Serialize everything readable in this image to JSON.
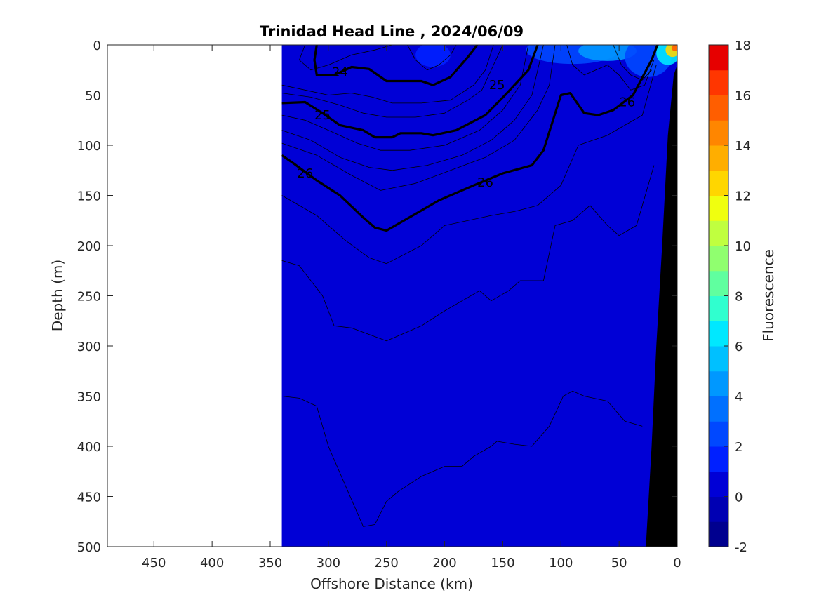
{
  "chart_data": {
    "type": "heatmap",
    "title": "Trinidad Head Line , 2024/06/09",
    "xlabel": "Offshore Distance (km)",
    "ylabel": "Depth (m)",
    "colorbar_label": "Fluorescence",
    "x_ticks": [
      450,
      400,
      350,
      300,
      250,
      200,
      150,
      100,
      50,
      0
    ],
    "y_ticks": [
      0,
      50,
      100,
      150,
      200,
      250,
      300,
      350,
      400,
      450,
      500
    ],
    "xlim": [
      490,
      0
    ],
    "ylim": [
      0,
      500
    ],
    "x_reversed": true,
    "y_reversed": true,
    "data_xmax": 340,
    "colorbar": {
      "ticks": [
        -2,
        0,
        2,
        4,
        6,
        8,
        10,
        12,
        14,
        16,
        18
      ],
      "levels": [
        -2,
        -1,
        0,
        1,
        2,
        3,
        4,
        5,
        6,
        7,
        8,
        9,
        10,
        11,
        12,
        13,
        14,
        15,
        16,
        17,
        18
      ],
      "colors": [
        "#00008f",
        "#0000b3",
        "#0000d6",
        "#0020ff",
        "#0048ff",
        "#0070ff",
        "#0098ff",
        "#00c0ff",
        "#00e8ff",
        "#30ffcf",
        "#60ff9f",
        "#90ff6f",
        "#c0ff3f",
        "#f0ff0f",
        "#ffd600",
        "#ffae00",
        "#ff8600",
        "#ff5e00",
        "#ff3600",
        "#e60000",
        "#b00000"
      ]
    },
    "background_level": 0.5,
    "surface_patches": [
      {
        "x": 90,
        "y": 5,
        "rx": 40,
        "ry": 14,
        "value": 2.5
      },
      {
        "x": 60,
        "y": 6,
        "rx": 25,
        "ry": 10,
        "value": 4.5
      },
      {
        "x": 25,
        "y": 12,
        "rx": 20,
        "ry": 20,
        "value": 2.5
      },
      {
        "x": 8,
        "y": 8,
        "rx": 10,
        "ry": 12,
        "value": 6
      },
      {
        "x": 4,
        "y": 5,
        "rx": 6,
        "ry": 7,
        "value": 12
      },
      {
        "x": 2,
        "y": 3,
        "rx": 3,
        "ry": 3,
        "value": 15
      },
      {
        "x": 210,
        "y": 10,
        "rx": 15,
        "ry": 12,
        "value": 1.5
      }
    ],
    "bathymetry": [
      [
        0,
        20
      ],
      [
        3,
        30
      ],
      [
        8,
        90
      ],
      [
        13,
        200
      ],
      [
        18,
        300
      ],
      [
        22,
        400
      ],
      [
        25,
        460
      ],
      [
        27,
        500
      ]
    ],
    "density_contours": [
      {
        "level": 24,
        "label": "24",
        "bold": true,
        "label_at": [
          290,
          27
        ],
        "points": [
          [
            310,
            0
          ],
          [
            312,
            15
          ],
          [
            310,
            30
          ],
          [
            295,
            30
          ],
          [
            280,
            22
          ],
          [
            265,
            24
          ],
          [
            250,
            36
          ],
          [
            220,
            36
          ],
          [
            210,
            40
          ],
          [
            195,
            32
          ],
          [
            180,
            12
          ],
          [
            172,
            0
          ]
        ]
      },
      {
        "level": 25,
        "label": "25",
        "bold": true,
        "label_at": [
          305,
          70
        ],
        "points": [
          [
            340,
            58
          ],
          [
            320,
            57
          ],
          [
            305,
            68
          ],
          [
            290,
            80
          ],
          [
            270,
            85
          ],
          [
            260,
            92
          ],
          [
            245,
            92
          ],
          [
            238,
            88
          ],
          [
            220,
            88
          ],
          [
            210,
            90
          ],
          [
            190,
            85
          ],
          [
            165,
            70
          ],
          [
            148,
            50
          ],
          [
            128,
            25
          ],
          [
            120,
            0
          ]
        ]
      },
      {
        "level": 25,
        "label": "25",
        "bold": true,
        "label_at": [
          155,
          40
        ],
        "points": []
      },
      {
        "level": 26,
        "label": "26",
        "bold": true,
        "label_at": [
          320,
          128
        ],
        "points": [
          [
            340,
            110
          ],
          [
            330,
            118
          ],
          [
            310,
            135
          ],
          [
            290,
            150
          ],
          [
            270,
            172
          ],
          [
            260,
            182
          ],
          [
            250,
            185
          ],
          [
            235,
            175
          ],
          [
            205,
            155
          ],
          [
            175,
            140
          ],
          [
            150,
            128
          ],
          [
            125,
            120
          ],
          [
            115,
            105
          ],
          [
            100,
            50
          ],
          [
            92,
            48
          ],
          [
            80,
            68
          ],
          [
            68,
            70
          ],
          [
            55,
            65
          ],
          [
            38,
            50
          ],
          [
            22,
            15
          ],
          [
            17,
            0
          ]
        ]
      },
      {
        "level": 26,
        "label": "26",
        "bold": true,
        "label_at": [
          165,
          137
        ],
        "points": []
      },
      {
        "level": 26,
        "label": "26",
        "bold": true,
        "label_at": [
          43,
          57
        ],
        "points": []
      },
      {
        "level": 26.2,
        "label": "",
        "bold": false,
        "label_at": [],
        "points": [
          [
            340,
            150
          ],
          [
            310,
            170
          ],
          [
            285,
            195
          ],
          [
            265,
            212
          ],
          [
            250,
            218
          ],
          [
            220,
            200
          ],
          [
            200,
            180
          ],
          [
            160,
            170
          ],
          [
            140,
            166
          ],
          [
            120,
            160
          ],
          [
            100,
            140
          ],
          [
            85,
            100
          ],
          [
            60,
            90
          ],
          [
            45,
            80
          ],
          [
            30,
            70
          ],
          [
            18,
            20
          ]
        ]
      },
      {
        "level": 26.4,
        "label": "",
        "bold": false,
        "label_at": [],
        "points": [
          [
            340,
            215
          ],
          [
            325,
            220
          ],
          [
            305,
            250
          ],
          [
            295,
            280
          ],
          [
            280,
            282
          ],
          [
            250,
            295
          ],
          [
            220,
            280
          ],
          [
            200,
            265
          ],
          [
            170,
            245
          ],
          [
            160,
            255
          ],
          [
            145,
            245
          ],
          [
            135,
            235
          ],
          [
            115,
            235
          ],
          [
            105,
            180
          ],
          [
            90,
            175
          ],
          [
            85,
            170
          ],
          [
            75,
            160
          ],
          [
            60,
            180
          ],
          [
            50,
            190
          ],
          [
            35,
            180
          ],
          [
            20,
            120
          ]
        ]
      },
      {
        "level": 26.6,
        "label": "",
        "bold": false,
        "label_at": [],
        "points": [
          [
            340,
            350
          ],
          [
            325,
            352
          ],
          [
            310,
            360
          ],
          [
            300,
            400
          ],
          [
            285,
            440
          ],
          [
            270,
            480
          ],
          [
            260,
            478
          ],
          [
            250,
            455
          ],
          [
            240,
            445
          ],
          [
            220,
            430
          ],
          [
            200,
            420
          ],
          [
            185,
            420
          ],
          [
            175,
            410
          ],
          [
            160,
            400
          ],
          [
            155,
            395
          ],
          [
            140,
            398
          ],
          [
            125,
            400
          ],
          [
            110,
            380
          ],
          [
            98,
            350
          ],
          [
            90,
            345
          ],
          [
            80,
            350
          ],
          [
            60,
            355
          ],
          [
            45,
            375
          ],
          [
            30,
            380
          ]
        ]
      },
      {
        "level": 25.2,
        "label": "",
        "bold": false,
        "label_at": [],
        "points": [
          [
            340,
            70
          ],
          [
            320,
            75
          ],
          [
            300,
            85
          ],
          [
            275,
            98
          ],
          [
            255,
            105
          ],
          [
            230,
            105
          ],
          [
            200,
            100
          ],
          [
            170,
            85
          ],
          [
            150,
            65
          ],
          [
            135,
            40
          ],
          [
            128,
            0
          ]
        ]
      },
      {
        "level": 25.5,
        "label": "",
        "bold": false,
        "label_at": [],
        "points": [
          [
            340,
            85
          ],
          [
            315,
            95
          ],
          [
            290,
            112
          ],
          [
            265,
            122
          ],
          [
            245,
            125
          ],
          [
            215,
            120
          ],
          [
            185,
            110
          ],
          [
            160,
            95
          ],
          [
            140,
            75
          ],
          [
            125,
            50
          ],
          [
            115,
            0
          ]
        ]
      },
      {
        "level": 25.8,
        "label": "",
        "bold": false,
        "label_at": [],
        "points": [
          [
            340,
            98
          ],
          [
            310,
            110
          ],
          [
            280,
            130
          ],
          [
            255,
            145
          ],
          [
            225,
            138
          ],
          [
            195,
            125
          ],
          [
            165,
            112
          ],
          [
            140,
            95
          ],
          [
            120,
            65
          ],
          [
            110,
            40
          ],
          [
            105,
            0
          ]
        ]
      },
      {
        "level": 24.5,
        "label": "",
        "bold": false,
        "label_at": [],
        "points": [
          [
            340,
            40
          ],
          [
            320,
            45
          ],
          [
            300,
            50
          ],
          [
            280,
            48
          ],
          [
            262,
            52
          ],
          [
            245,
            58
          ],
          [
            220,
            58
          ],
          [
            195,
            55
          ],
          [
            175,
            40
          ],
          [
            165,
            25
          ],
          [
            158,
            0
          ]
        ]
      },
      {
        "level": 24.8,
        "label": "",
        "bold": false,
        "label_at": [],
        "points": [
          [
            340,
            48
          ],
          [
            315,
            52
          ],
          [
            290,
            60
          ],
          [
            270,
            68
          ],
          [
            250,
            72
          ],
          [
            225,
            72
          ],
          [
            200,
            68
          ],
          [
            180,
            55
          ],
          [
            168,
            45
          ],
          [
            158,
            20
          ],
          [
            150,
            0
          ]
        ]
      },
      {
        "level": 23.8,
        "label": "",
        "bold": false,
        "label_at": [],
        "points": [
          [
            320,
            0
          ],
          [
            325,
            15
          ],
          [
            315,
            25
          ],
          [
            300,
            20
          ],
          [
            280,
            10
          ],
          [
            260,
            5
          ],
          [
            245,
            0
          ]
        ]
      },
      {
        "level": 24.2,
        "label": "",
        "bold": false,
        "label_at": [],
        "points": [
          [
            232,
            0
          ],
          [
            225,
            15
          ],
          [
            215,
            25
          ],
          [
            205,
            20
          ],
          [
            195,
            10
          ],
          [
            190,
            0
          ]
        ]
      },
      {
        "level": 26.1,
        "label": "",
        "bold": false,
        "label_at": [],
        "points": [
          [
            95,
            0
          ],
          [
            90,
            20
          ],
          [
            80,
            30
          ],
          [
            70,
            25
          ],
          [
            60,
            20
          ],
          [
            50,
            30
          ],
          [
            40,
            45
          ],
          [
            28,
            40
          ],
          [
            20,
            15
          ]
        ]
      },
      {
        "level": 26.3,
        "label": "",
        "bold": false,
        "label_at": [],
        "points": [
          [
            55,
            0
          ],
          [
            48,
            20
          ],
          [
            40,
            30
          ],
          [
            30,
            35
          ],
          [
            22,
            25
          ]
        ]
      }
    ]
  }
}
